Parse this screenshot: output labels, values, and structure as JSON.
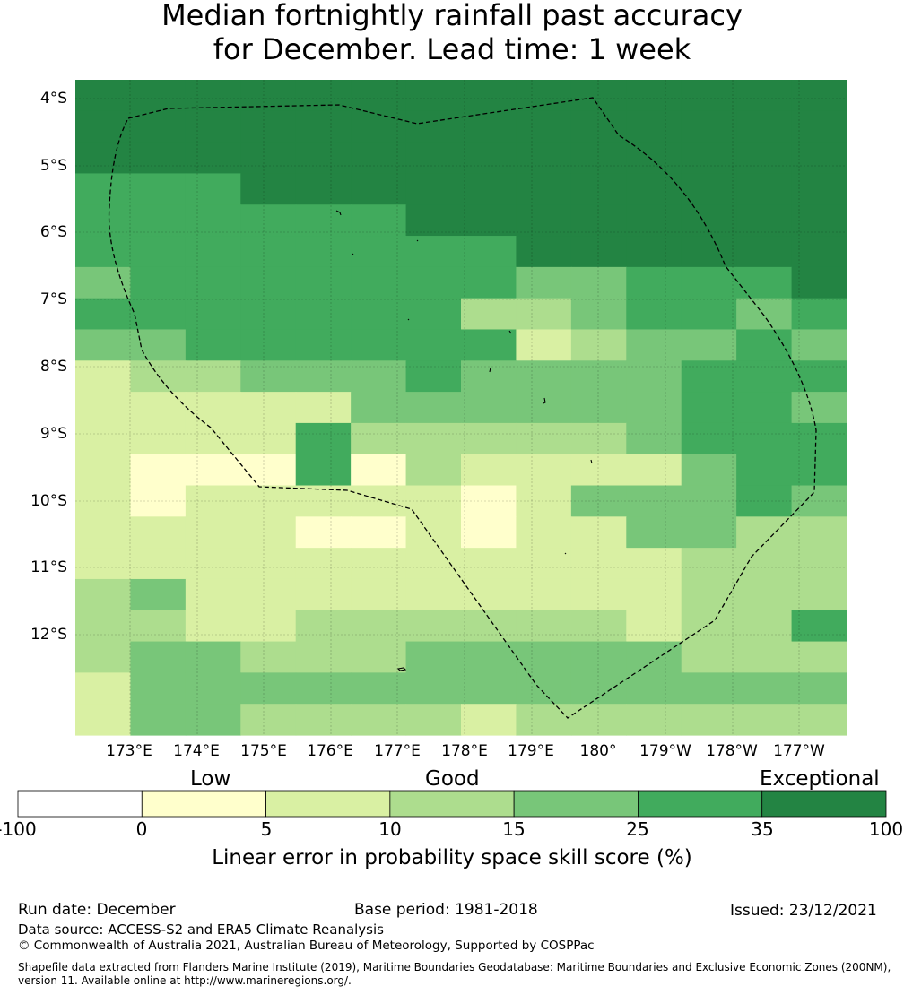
{
  "title_line1": "Median fortnightly rainfall past accuracy",
  "title_line2": "for December. Lead time: 1 week",
  "lat_labels": [
    "4°S",
    "5°S",
    "6°S",
    "7°S",
    "8°S",
    "9°S",
    "10°S",
    "11°S",
    "12°S"
  ],
  "lon_labels": [
    "173°E",
    "174°E",
    "175°E",
    "176°E",
    "177°E",
    "178°E",
    "179°E",
    "180°",
    "179°W",
    "178°W",
    "177°W"
  ],
  "category_labels": {
    "low": "Low",
    "good": "Good",
    "exceptional": "Exceptional"
  },
  "colorbar": {
    "ticks": [
      "-100",
      "0",
      "5",
      "10",
      "15",
      "25",
      "35",
      "100"
    ],
    "colors": [
      "#ffffff",
      "#ffffcc",
      "#d9f0a3",
      "#addd8e",
      "#78c679",
      "#41ab5d",
      "#238443"
    ],
    "label": "Linear error in probability space skill score (%)"
  },
  "grid": {
    "colors": [
      "#ffffcc",
      "#d9f0a3",
      "#addd8e",
      "#78c679",
      "#41ab5d",
      "#238443"
    ],
    "rows": [
      "55555555555555",
      "55555555555555",
      "55555555555555",
      "44455555555555",
      "44444455555555",
      "44444444555555",
      "34444444334445",
      "44444442234434",
      "33444444123343",
      "12233343333444",
      "11111333333443",
      "11114222223444",
      "10004021111344",
      "10111110133343",
      "11110010113322",
      "11111111111222",
      "23111111111222",
      "22112222221224",
      "23322233333222",
      "13333333333333",
      "13322221222222"
    ]
  },
  "footer": {
    "run_date": "Run date: December",
    "base_period": "Base period: 1981-2018",
    "issued": "Issued: 23/12/2021",
    "data_source": "Data source: ACCESS-S2 and ERA5 Climate Reanalysis",
    "copyright": "© Commonwealth of Australia 2021, Australian Bureau of Meteorology, Supported by COSPPac",
    "shapefile1": "Shapefile data extracted from Flanders Marine Institute (2019), Maritime Boundaries Geodatabase: Maritime Boundaries and Exclusive Economic Zones (200NM),",
    "shapefile2": "version 11. Available online at http://www.marineregions.org/."
  }
}
